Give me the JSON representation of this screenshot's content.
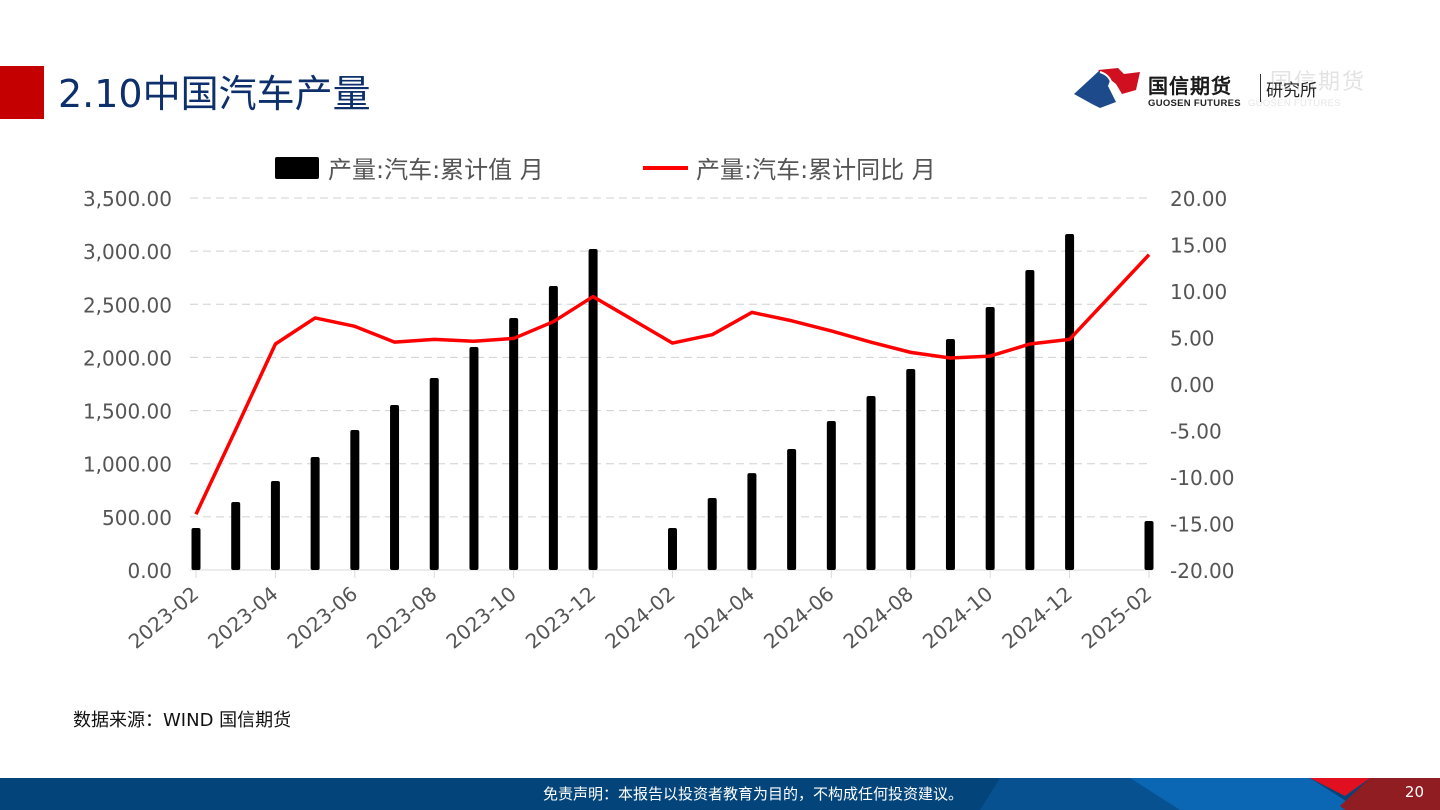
{
  "page": {
    "title": "2.10中国汽车产量",
    "source": "数据来源：WIND   国信期货",
    "disclaimer": "免责声明：本报告以投资者教育为目的，不构成任何投资建议。",
    "page_number": "20"
  },
  "logo": {
    "name_cn": "国信期货",
    "name_en": "GUOSEN FUTURES",
    "sub": "研究所"
  },
  "colors": {
    "title_accent": "#c40000",
    "title_text": "#0d2f6b",
    "bar": "#000000",
    "line": "#ff0000",
    "footer": "#03457a",
    "gridline": "#d0d0d0"
  },
  "chart_data": {
    "type": "bar+line",
    "title": "",
    "legend_position": "top",
    "grid": true,
    "xlabel": "",
    "ylabel": "",
    "y2label": "",
    "ylim": [
      0,
      3500
    ],
    "y2lim": [
      -20,
      20
    ],
    "y_ticks": [
      "0.00",
      "500.00",
      "1,000.00",
      "1,500.00",
      "2,000.00",
      "2,500.00",
      "3,000.00",
      "3,500.00"
    ],
    "y2_ticks": [
      "-20.00",
      "-15.00",
      "-10.00",
      "-5.00",
      "0.00",
      "5.00",
      "10.00",
      "15.00",
      "20.00"
    ],
    "x_tick_labels": [
      "2023-02",
      "2023-04",
      "2023-06",
      "2023-08",
      "2023-10",
      "2023-12",
      "2024-02",
      "2024-04",
      "2024-06",
      "2024-08",
      "2024-10",
      "2024-12",
      "2025-02"
    ],
    "categories": [
      "2023-02",
      "2023-03",
      "2023-04",
      "2023-05",
      "2023-06",
      "2023-07",
      "2023-08",
      "2023-09",
      "2023-10",
      "2023-11",
      "2023-12",
      "2024-01",
      "2024-02",
      "2024-03",
      "2024-04",
      "2024-05",
      "2024-06",
      "2024-07",
      "2024-08",
      "2024-09",
      "2024-10",
      "2024-11",
      "2024-12",
      "2025-01",
      "2025-02"
    ],
    "series": [
      {
        "name": "产量:汽车:累计值 月",
        "type": "bar",
        "axis": "left",
        "values": [
          395,
          640,
          837,
          1063,
          1317,
          1552,
          1806,
          2098,
          2371,
          2672,
          3020,
          null,
          395,
          677,
          912,
          1138,
          1402,
          1637,
          1891,
          2173,
          2474,
          2822,
          3161,
          null,
          461
        ]
      },
      {
        "name": "产量:汽车:累计同比 月",
        "type": "line",
        "axis": "right",
        "values": [
          -14.0,
          -4.9,
          4.3,
          7.1,
          6.2,
          4.5,
          4.8,
          4.6,
          4.9,
          6.7,
          9.4,
          null,
          4.4,
          5.3,
          7.7,
          6.8,
          5.7,
          4.5,
          3.4,
          2.8,
          3.0,
          4.3,
          4.8,
          null,
          13.9
        ]
      }
    ]
  }
}
